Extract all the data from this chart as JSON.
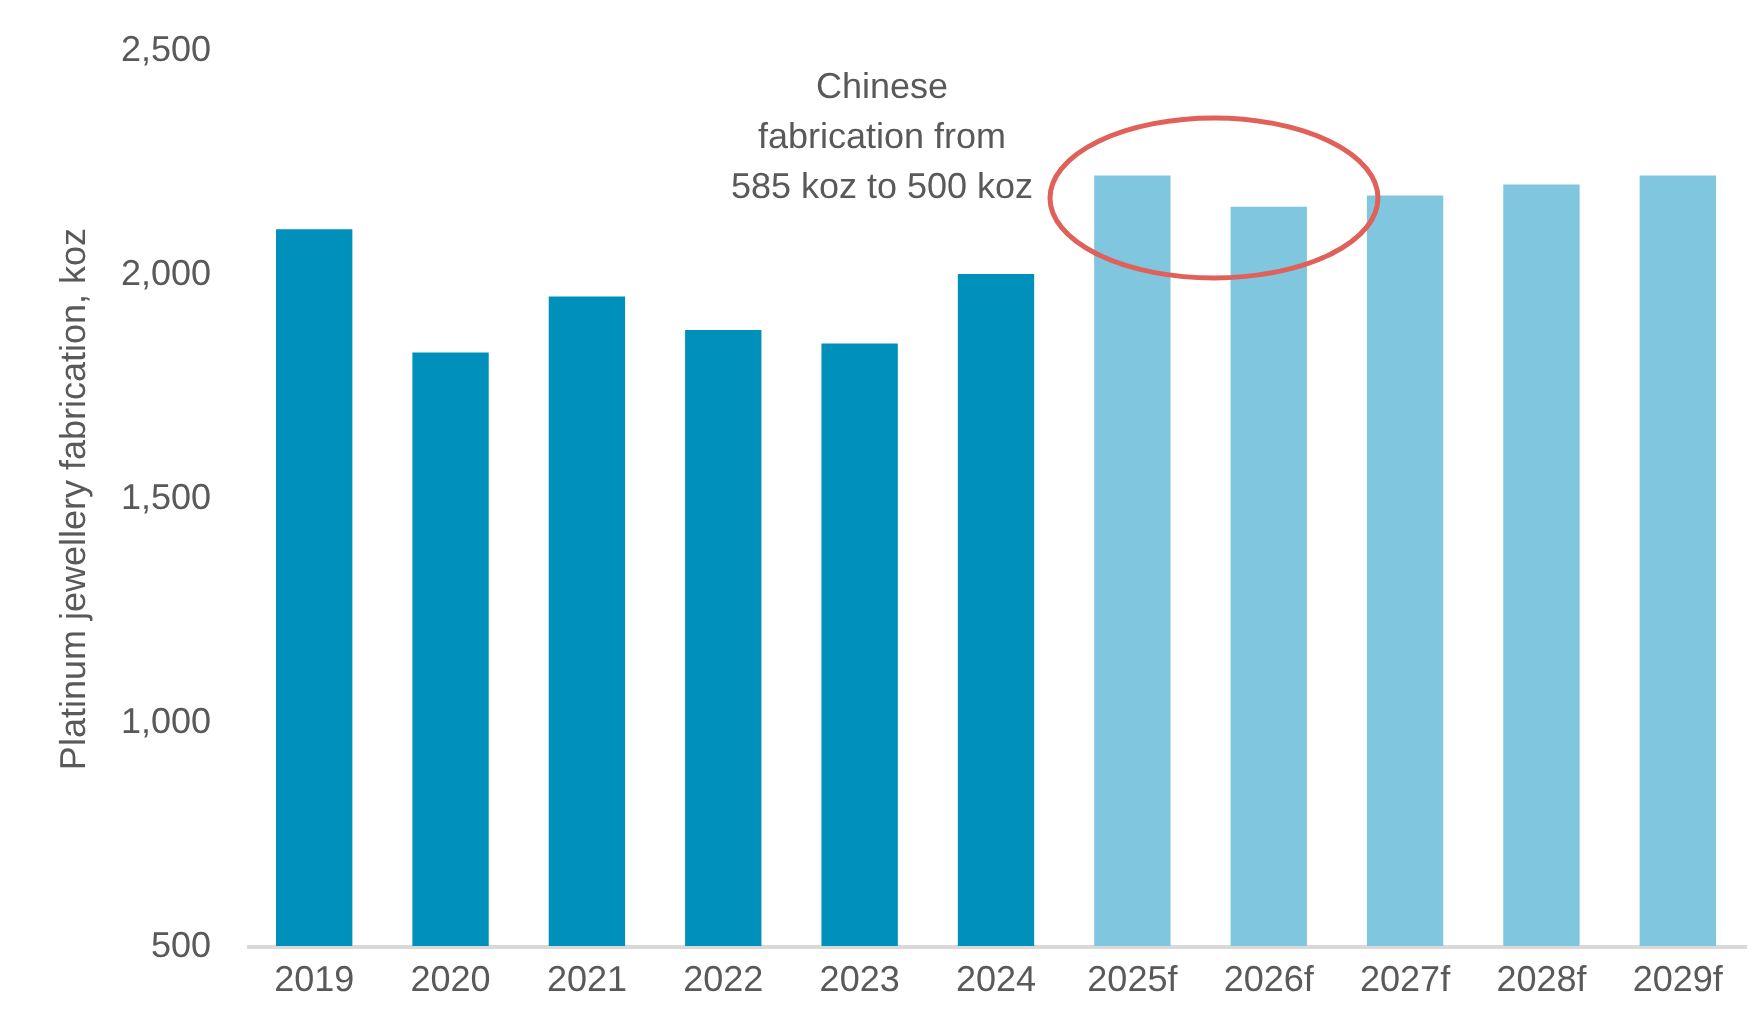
{
  "chart_data": {
    "type": "bar",
    "ylabel": "Platinum jewellery fabrication, koz",
    "categories": [
      "2019",
      "2020",
      "2021",
      "2022",
      "2023",
      "2024",
      "2025f",
      "2026f",
      "2027f",
      "2028f",
      "2029f"
    ],
    "values": [
      2100,
      1825,
      1950,
      1875,
      1845,
      2000,
      2220,
      2150,
      2175,
      2200,
      2220
    ],
    "colors": [
      "#0090bc",
      "#0090bc",
      "#0090bc",
      "#0090bc",
      "#0090bc",
      "#0090bc",
      "#80c6de",
      "#80c6de",
      "#80c6de",
      "#80c6de",
      "#80c6de"
    ],
    "ylim": [
      500,
      2500
    ],
    "yticks": [
      500,
      {
        "value": 1000,
        "label": "1,000"
      },
      {
        "value": 1500,
        "label": "1,500"
      },
      {
        "value": 2000,
        "label": "2,000"
      },
      {
        "value": 2500,
        "label": "2,500"
      }
    ],
    "annotations": [
      "Chinese fabrication from 585 koz to 500 koz"
    ]
  }
}
